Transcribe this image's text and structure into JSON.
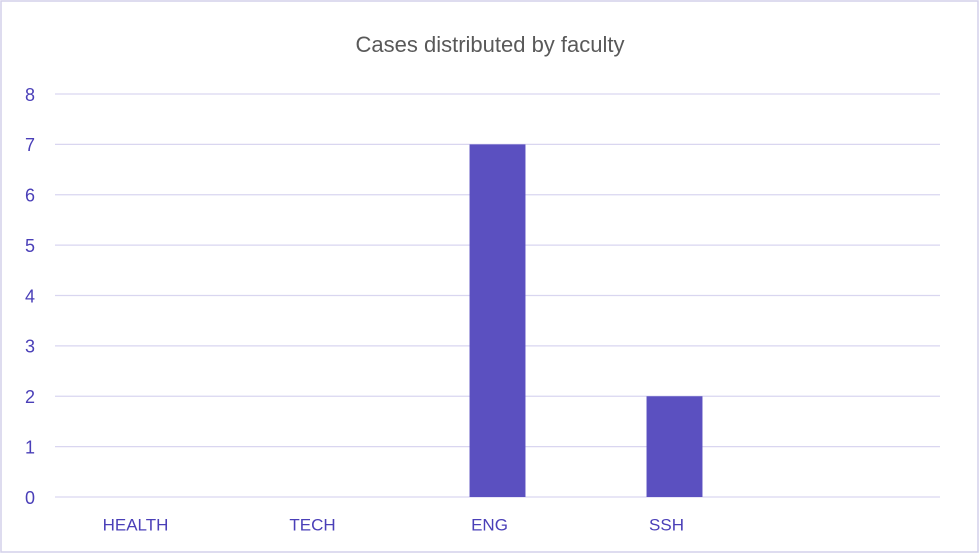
{
  "chart_data": {
    "type": "bar",
    "title": "Cases distributed by faculty",
    "categories": [
      "HEALTH",
      "TECH",
      "ENG",
      "SSH",
      null
    ],
    "values": [
      0,
      0,
      7,
      2,
      null
    ],
    "color": "#5b50c0",
    "ylim": [
      0,
      8
    ],
    "yticks": [
      0,
      1,
      2,
      3,
      4,
      5,
      6,
      7,
      8
    ],
    "grid": true
  }
}
